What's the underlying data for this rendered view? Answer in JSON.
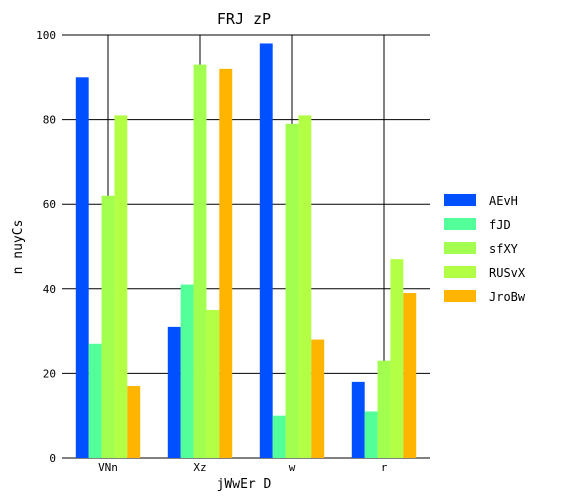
{
  "chart_data": {
    "type": "bar",
    "title": "FRJ zP",
    "xlabel": "jWwEr  D",
    "ylabel": "n nuyCs",
    "categories": [
      "VNn",
      "Xz",
      "w",
      "r"
    ],
    "ylim": [
      0,
      100
    ],
    "yticks": [
      0,
      20,
      40,
      60,
      80,
      100
    ],
    "grid": true,
    "legend_position": "right",
    "series": [
      {
        "name": "AEvH",
        "color": "#0050ff",
        "values": [
          90,
          31,
          98,
          18
        ]
      },
      {
        "name": "fJD",
        "color": "#52ff98",
        "values": [
          27,
          41,
          10,
          11
        ]
      },
      {
        "name": "sfXY",
        "color": "#a2ff50",
        "values": [
          62,
          93,
          79,
          23
        ]
      },
      {
        "name": "RUSvX",
        "color": "#b2ff46",
        "values": [
          81,
          35,
          81,
          47
        ]
      },
      {
        "name": "JroBw",
        "color": "#ffb400",
        "values": [
          17,
          92,
          28,
          39
        ]
      }
    ]
  }
}
